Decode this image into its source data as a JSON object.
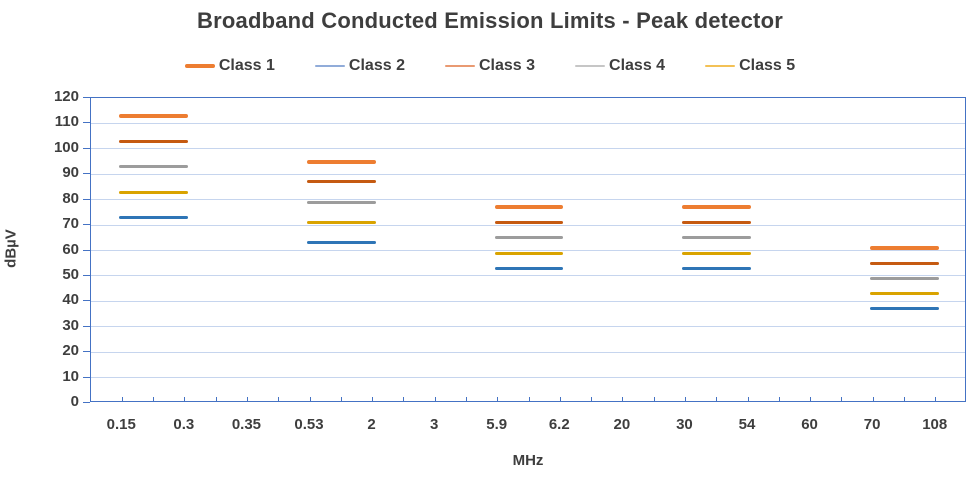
{
  "chart_data": {
    "type": "line",
    "title": "Broadband Conducted Emission Limits - Peak detector",
    "xlabel": "MHz",
    "ylabel": "dBµV",
    "ylim": [
      0,
      120
    ],
    "ytick_step": 10,
    "grid": true,
    "legend_position": "top",
    "x_categories": [
      "0.15",
      "0.3",
      "0.35",
      "0.53",
      "2",
      "3",
      "5.9",
      "6.2",
      "20",
      "30",
      "54",
      "60",
      "70",
      "108"
    ],
    "bands": [
      {
        "from": "0.15",
        "to": "0.3"
      },
      {
        "from": "0.53",
        "to": "2"
      },
      {
        "from": "5.9",
        "to": "6.2"
      },
      {
        "from": "30",
        "to": "54"
      },
      {
        "from": "70",
        "to": "108"
      }
    ],
    "series": [
      {
        "name": "Class 1",
        "color": "#ED7D31",
        "legend_color": "#ED7D31",
        "thickness": 4,
        "values": [
          113,
          95,
          77,
          77,
          61
        ]
      },
      {
        "name": "Class 2",
        "color": "#2E75B6",
        "legend_color": "#91ACD9",
        "thickness": 3,
        "values": [
          73,
          63,
          53,
          53,
          37
        ]
      },
      {
        "name": "Class 3",
        "color": "#C55A11",
        "legend_color": "#E99A72",
        "thickness": 3,
        "values": [
          103,
          87,
          71,
          71,
          55
        ]
      },
      {
        "name": "Class 4",
        "color": "#9C9C9C",
        "legend_color": "#C6C6C6",
        "thickness": 3,
        "values": [
          93,
          79,
          65,
          65,
          49
        ]
      },
      {
        "name": "Class 5",
        "color": "#D9A300",
        "legend_color": "#F3C156",
        "thickness": 3,
        "values": [
          83,
          71,
          59,
          59,
          43
        ]
      }
    ],
    "axis_color": "#4472C4",
    "gridline_color": "#C6D5EE",
    "text_color": "#3E3E3E"
  }
}
